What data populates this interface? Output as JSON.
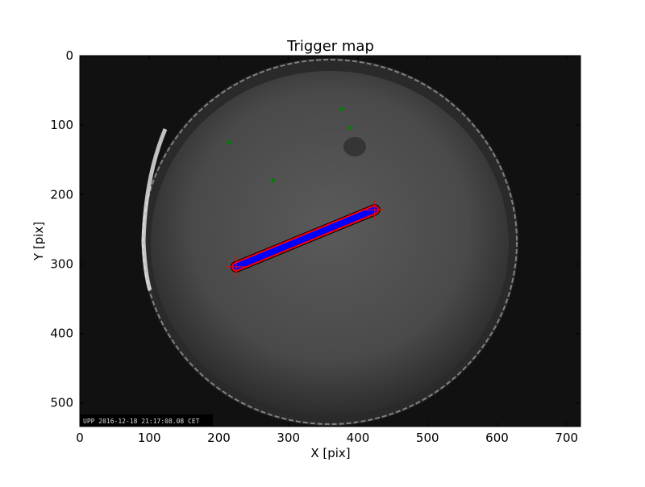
{
  "chart_data": {
    "type": "scatter",
    "title": "Trigger map",
    "xlabel": "X [pix]",
    "ylabel": "Y [pix]",
    "xlim": [
      0,
      720
    ],
    "ylim": [
      534,
      0
    ],
    "xticks": [
      0,
      100,
      200,
      300,
      400,
      500,
      600,
      700
    ],
    "yticks": [
      0,
      100,
      200,
      300,
      400,
      500
    ],
    "grid": false,
    "image_caption": "UPP 2016-12-18 21:17:08.08 CET",
    "colors": {
      "streak": "#0000ff",
      "outline": "#ff0000",
      "points": "#008000",
      "cross": "#ff0000"
    },
    "streak": {
      "start": [
        225,
        304
      ],
      "end": [
        424,
        222
      ]
    },
    "crosses": [
      [
        225,
        304
      ],
      [
        424,
        222
      ]
    ],
    "points": [
      [
        377,
        77
      ],
      [
        390,
        104
      ],
      [
        215,
        125
      ],
      [
        278,
        180
      ]
    ]
  }
}
